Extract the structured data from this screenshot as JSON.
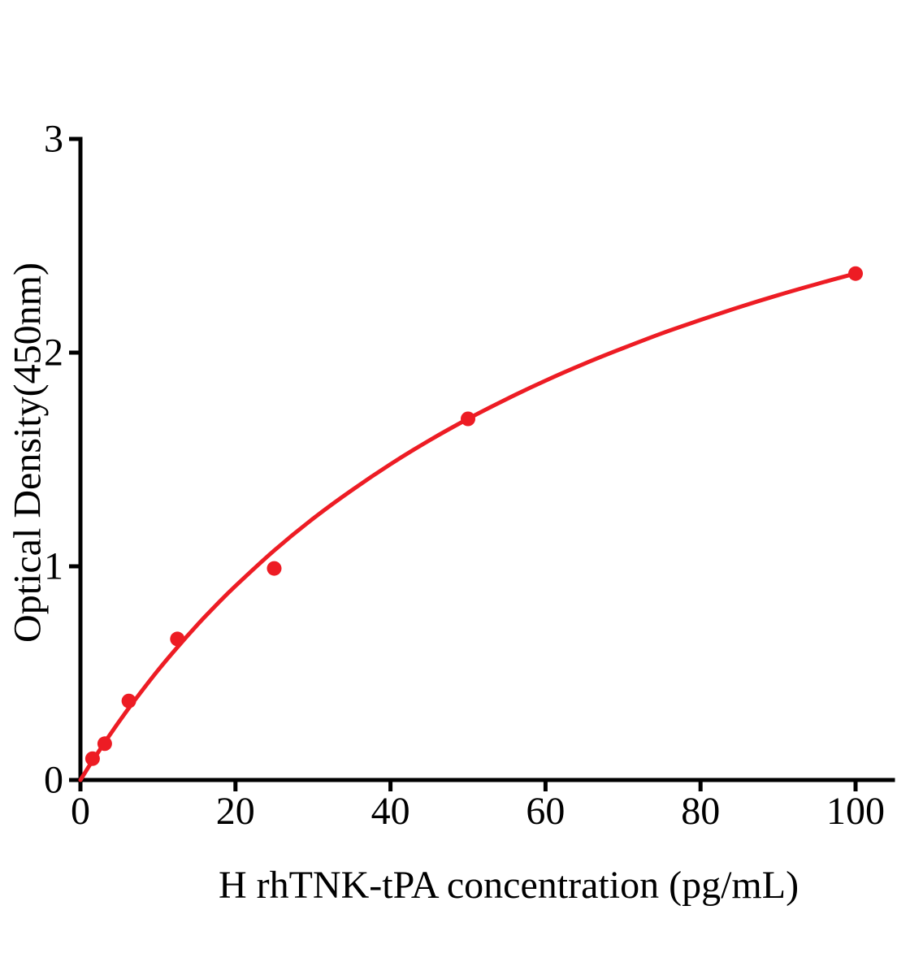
{
  "figure": {
    "background": "#FFFFFF",
    "text_color": "#000000"
  },
  "chart_data": {
    "type": "scatter",
    "title": "",
    "xlabel": "H rhTNK-tPA concentration (pg/mL)",
    "ylabel": "Optical Density(450nm)",
    "xlim": [
      0,
      105
    ],
    "ylim": [
      0,
      3
    ],
    "x_ticks": [
      0,
      20,
      40,
      60,
      80,
      100
    ],
    "y_ticks": [
      0,
      1,
      2,
      3
    ],
    "grid": false,
    "legend": false,
    "axis_color": "#000000",
    "accent_color": "#ED1C24",
    "series": [
      {
        "name": "standard-points",
        "type": "scatter",
        "color": "#ED1C24",
        "marker": "circle",
        "marker_radius": 9,
        "points": [
          {
            "x": 1.56,
            "y": 0.1
          },
          {
            "x": 3.13,
            "y": 0.17
          },
          {
            "x": 6.25,
            "y": 0.37
          },
          {
            "x": 12.5,
            "y": 0.66
          },
          {
            "x": 25,
            "y": 0.99
          },
          {
            "x": 50,
            "y": 1.69
          },
          {
            "x": 100,
            "y": 2.37
          }
        ]
      },
      {
        "name": "fitted-curve",
        "type": "line",
        "color": "#ED1C24",
        "stroke_width": 5,
        "points": [
          {
            "x": 0,
            "y": 0.0
          },
          {
            "x": 1,
            "y": 0.058
          },
          {
            "x": 2,
            "y": 0.114
          },
          {
            "x": 3,
            "y": 0.169
          },
          {
            "x": 4,
            "y": 0.222
          },
          {
            "x": 5,
            "y": 0.274
          },
          {
            "x": 6.25,
            "y": 0.337
          },
          {
            "x": 7.5,
            "y": 0.397
          },
          {
            "x": 10,
            "y": 0.513
          },
          {
            "x": 12.5,
            "y": 0.621
          },
          {
            "x": 15,
            "y": 0.723
          },
          {
            "x": 17.5,
            "y": 0.818
          },
          {
            "x": 20,
            "y": 0.908
          },
          {
            "x": 25,
            "y": 1.074
          },
          {
            "x": 30,
            "y": 1.223
          },
          {
            "x": 35,
            "y": 1.356
          },
          {
            "x": 40,
            "y": 1.478
          },
          {
            "x": 45,
            "y": 1.589
          },
          {
            "x": 50,
            "y": 1.69
          },
          {
            "x": 55,
            "y": 1.783
          },
          {
            "x": 60,
            "y": 1.869
          },
          {
            "x": 65,
            "y": 1.948
          },
          {
            "x": 70,
            "y": 2.021
          },
          {
            "x": 75,
            "y": 2.09
          },
          {
            "x": 80,
            "y": 2.153
          },
          {
            "x": 85,
            "y": 2.213
          },
          {
            "x": 90,
            "y": 2.269
          },
          {
            "x": 95,
            "y": 2.321
          },
          {
            "x": 100,
            "y": 2.37
          }
        ]
      }
    ]
  }
}
